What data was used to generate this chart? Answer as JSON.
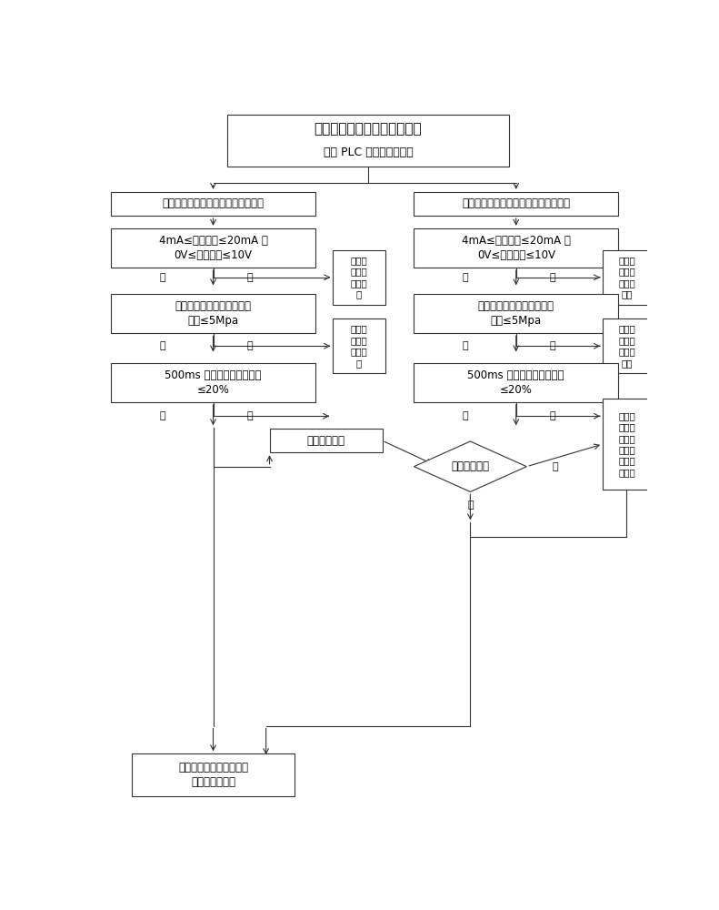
{
  "bg_color": "#f5f5f5",
  "title": "压力传感器自动切换系统启动",
  "subtitle": "任务 PLC 开始扫描、采样",
  "left_box1": "主压力传感器反馈参数进入实时采样",
  "right_box1": "备用压力传感器反馈参数进入实时采样",
  "left_cond1": "4mA≤反馈电流≤20mA 或\n0V≤反馈电压≤10V",
  "right_cond1": "4mA≤反馈电流≤20mA 或\n0V≤反馈电压≤10V",
  "left_fault1": "主压力\n检测点\n故障报\n警",
  "right_fault1": "备用压\n力检测\n点故障\n报警",
  "left_box2": "前后扫描周期压力反馈值波\n动量≤5Mpa",
  "right_box2": "前后扫描周期压力反馈值波\n动量≤5Mpa",
  "left_fault2": "主压力\n检测点\n精度报\n警",
  "right_fault2": "备用压\n力检测\n点精度\n报警",
  "left_box3": "500ms 内压力反馈的变化率\n≤20%",
  "right_box3": "500ms 内压力反馈的变化率\n≤20%",
  "switch_cmd": "切换命令发出",
  "diamond_text": "切换开关打开",
  "right_spare": "备用传\n感器采\n样压力\n值放入\n备用通\n道备用",
  "bottom_box": "传感器采样压力值送入压\n力闭环控制回路",
  "yes": "是",
  "no": "否"
}
